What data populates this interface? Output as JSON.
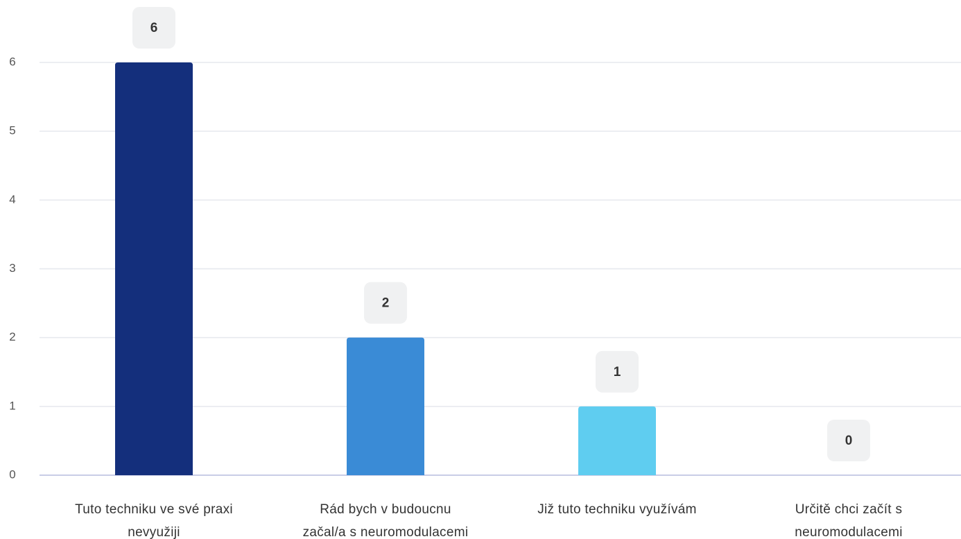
{
  "chart_data": {
    "type": "bar",
    "categories": [
      "Tuto techniku ve své praxi nevyužiji",
      "Rád bych v budoucnu začal/a s neuromodulacemi",
      "Již tuto techniku využívám",
      "Určitě chci začít s neuromodulacemi"
    ],
    "values": [
      6,
      2,
      1,
      0
    ],
    "colors": [
      "#142f7c",
      "#3a8bd6",
      "#5fcdf0",
      "#9fe3f7"
    ],
    "ylim": [
      0,
      6
    ],
    "yticks": [
      0,
      1,
      2,
      3,
      4,
      5,
      6
    ],
    "grid": true
  }
}
